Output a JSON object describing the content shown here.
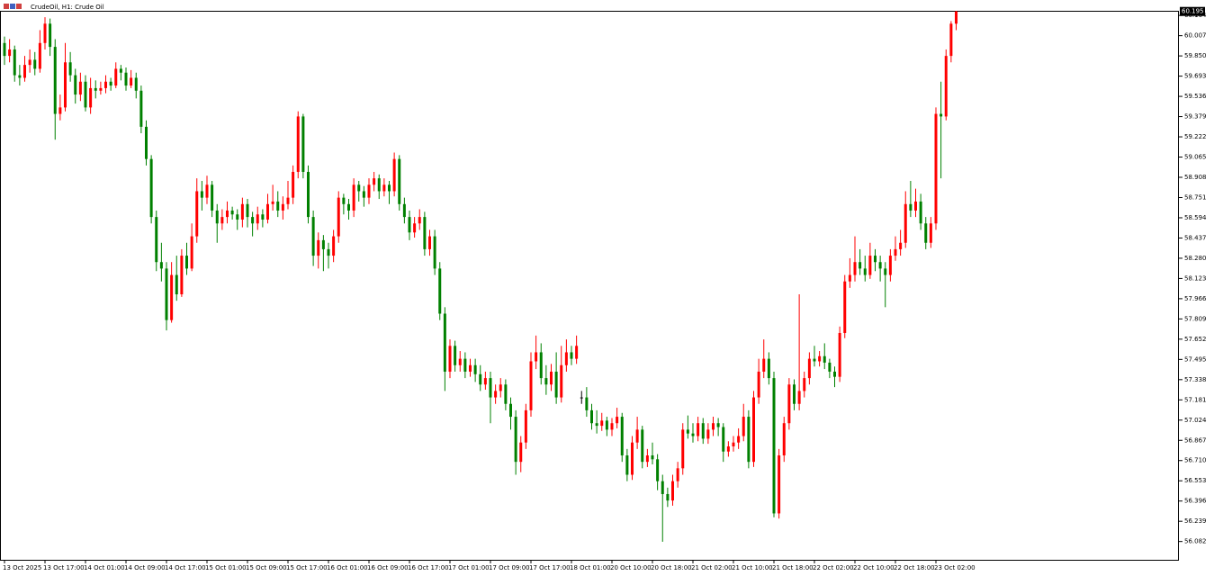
{
  "chart_data": {
    "type": "candlestick",
    "title": "CrudeOil, H1: Crude Oil",
    "up_color": "#ff0000",
    "down_color": "#008000",
    "last_price": 60.195,
    "ylim": [
      55.94,
      60.2
    ],
    "yticks": [
      60.164,
      60.007,
      {
        "value": 59.85,
        "label": "59.850"
      },
      59.693,
      59.536,
      59.379,
      59.222,
      59.065,
      58.908,
      58.751,
      58.594,
      58.437,
      {
        "value": 58.28,
        "label": "58.280"
      },
      58.123,
      57.966,
      57.809,
      57.652,
      57.495,
      57.338,
      57.181,
      57.024,
      56.867,
      {
        "value": 56.71,
        "label": "56.710"
      },
      56.553,
      56.396,
      56.239,
      56.082
    ],
    "categories": [
      "13 Oct 2025",
      null,
      null,
      null,
      null,
      null,
      null,
      null,
      "13 Oct 17:00",
      null,
      null,
      null,
      null,
      null,
      null,
      null,
      "14 Oct 01:00",
      null,
      null,
      null,
      null,
      null,
      null,
      null,
      "14 Oct 09:00",
      null,
      null,
      null,
      null,
      null,
      null,
      null,
      "14 Oct 17:00",
      null,
      null,
      null,
      null,
      null,
      null,
      null,
      "15 Oct 01:00",
      null,
      null,
      null,
      null,
      null,
      null,
      null,
      "15 Oct 09:00",
      null,
      null,
      null,
      null,
      null,
      null,
      null,
      "15 Oct 17:00",
      null,
      null,
      null,
      null,
      null,
      null,
      null,
      "16 Oct 01:00",
      null,
      null,
      null,
      null,
      null,
      null,
      null,
      "16 Oct 09:00",
      null,
      null,
      null,
      null,
      null,
      null,
      null,
      "16 Oct 17:00",
      null,
      null,
      null,
      null,
      null,
      null,
      null,
      "17 Oct 01:00",
      null,
      null,
      null,
      null,
      null,
      null,
      null,
      "17 Oct 09:00",
      null,
      null,
      null,
      null,
      null,
      null,
      null,
      "17 Oct 17:00",
      null,
      null,
      null,
      null,
      null,
      null,
      null,
      "18 Oct 01:00",
      null,
      null,
      null,
      null,
      null,
      null,
      null,
      "20 Oct 10:00",
      null,
      null,
      null,
      null,
      null,
      null,
      null,
      "20 Oct 18:00",
      null,
      null,
      null,
      null,
      null,
      null,
      null,
      "21 Oct 02:00",
      null,
      null,
      null,
      null,
      null,
      null,
      null,
      "21 Oct 10:00",
      null,
      null,
      null,
      null,
      null,
      null,
      null,
      "21 Oct 18:00",
      null,
      null,
      null,
      null,
      null,
      null,
      null,
      "22 Oct 02:00",
      null,
      null,
      null,
      null,
      null,
      null,
      null,
      "22 Oct 10:00",
      null,
      null,
      null,
      null,
      null,
      null,
      null,
      "22 Oct 18:00",
      null,
      null,
      null,
      null,
      null,
      null,
      null,
      "23 Oct 02:00",
      null,
      null,
      null,
      null
    ],
    "candles": [
      [
        59.95,
        60.0,
        59.78,
        59.85
      ],
      [
        59.85,
        59.98,
        59.8,
        59.9
      ],
      [
        59.9,
        59.93,
        59.65,
        59.7
      ],
      [
        59.7,
        59.78,
        59.62,
        59.68
      ],
      [
        59.68,
        59.85,
        59.65,
        59.78
      ],
      [
        59.78,
        59.9,
        59.72,
        59.82
      ],
      [
        59.82,
        59.88,
        59.7,
        59.75
      ],
      [
        59.75,
        60.05,
        59.72,
        59.95
      ],
      [
        59.95,
        60.15,
        59.9,
        60.1
      ],
      [
        60.1,
        60.14,
        59.85,
        59.92
      ],
      [
        59.92,
        59.98,
        59.2,
        59.4
      ],
      [
        59.4,
        59.55,
        59.35,
        59.45
      ],
      [
        59.45,
        59.95,
        59.42,
        59.8
      ],
      [
        59.8,
        59.88,
        59.65,
        59.7
      ],
      [
        59.7,
        59.75,
        59.48,
        59.55
      ],
      [
        59.55,
        59.72,
        59.5,
        59.65
      ],
      [
        59.65,
        59.7,
        59.42,
        59.45
      ],
      [
        59.45,
        59.68,
        59.4,
        59.6
      ],
      [
        59.6,
        59.66,
        59.52,
        59.58
      ],
      [
        59.58,
        59.65,
        59.55,
        59.6
      ],
      [
        59.6,
        59.7,
        59.56,
        59.65
      ],
      [
        59.65,
        59.68,
        59.58,
        59.62
      ],
      [
        59.62,
        59.8,
        59.6,
        59.75
      ],
      [
        59.75,
        59.78,
        59.66,
        59.72
      ],
      [
        59.72,
        59.76,
        59.58,
        59.62
      ],
      [
        59.62,
        59.74,
        59.6,
        59.68
      ],
      [
        59.68,
        59.72,
        59.52,
        59.58
      ],
      [
        59.58,
        59.62,
        59.25,
        59.3
      ],
      [
        59.3,
        59.35,
        59.0,
        59.05
      ],
      [
        59.05,
        59.08,
        58.55,
        58.6
      ],
      [
        58.6,
        58.65,
        58.18,
        58.25
      ],
      [
        58.25,
        58.4,
        58.1,
        58.2
      ],
      [
        58.2,
        58.25,
        57.72,
        57.8
      ],
      [
        57.8,
        58.25,
        57.78,
        58.15
      ],
      [
        58.15,
        58.3,
        57.95,
        58.0
      ],
      [
        58.0,
        58.35,
        57.98,
        58.3
      ],
      [
        58.3,
        58.4,
        58.15,
        58.2
      ],
      [
        58.2,
        58.55,
        58.18,
        58.45
      ],
      [
        58.45,
        58.9,
        58.4,
        58.8
      ],
      [
        58.8,
        58.88,
        58.65,
        58.75
      ],
      [
        58.75,
        58.92,
        58.7,
        58.85
      ],
      [
        58.85,
        58.88,
        58.6,
        58.65
      ],
      [
        58.65,
        58.7,
        58.4,
        58.55
      ],
      [
        58.55,
        58.66,
        58.5,
        58.6
      ],
      [
        58.6,
        58.72,
        58.55,
        58.65
      ],
      [
        58.65,
        58.68,
        58.58,
        58.62
      ],
      [
        58.62,
        58.66,
        58.5,
        58.58
      ],
      [
        58.58,
        58.75,
        58.52,
        58.7
      ],
      [
        58.7,
        58.74,
        58.52,
        58.6
      ],
      [
        58.6,
        58.64,
        58.45,
        58.55
      ],
      [
        58.55,
        58.68,
        58.5,
        58.62
      ],
      [
        58.62,
        58.66,
        58.52,
        58.58
      ],
      [
        58.58,
        58.78,
        58.55,
        58.7
      ],
      [
        58.7,
        58.85,
        58.65,
        58.72
      ],
      [
        58.72,
        58.8,
        58.6,
        58.65
      ],
      [
        58.65,
        58.76,
        58.58,
        58.7
      ],
      [
        58.7,
        58.88,
        58.66,
        58.75
      ],
      [
        58.75,
        59.0,
        58.7,
        58.95
      ],
      [
        58.95,
        59.42,
        58.9,
        59.38
      ],
      [
        59.38,
        59.4,
        58.9,
        58.95
      ],
      [
        58.95,
        59.0,
        58.55,
        58.6
      ],
      [
        58.6,
        58.65,
        58.22,
        58.3
      ],
      [
        58.3,
        58.48,
        58.2,
        58.42
      ],
      [
        58.42,
        58.46,
        58.18,
        58.35
      ],
      [
        58.35,
        58.4,
        58.2,
        58.3
      ],
      [
        58.3,
        58.5,
        58.25,
        58.45
      ],
      [
        58.45,
        58.8,
        58.4,
        58.75
      ],
      [
        58.75,
        58.78,
        58.62,
        58.7
      ],
      [
        58.7,
        58.74,
        58.58,
        58.65
      ],
      [
        58.65,
        58.9,
        58.6,
        58.85
      ],
      [
        58.85,
        58.88,
        58.72,
        58.8
      ],
      [
        58.8,
        58.84,
        58.68,
        58.75
      ],
      [
        58.75,
        58.9,
        58.7,
        58.85
      ],
      [
        58.85,
        58.95,
        58.8,
        58.9
      ],
      [
        58.9,
        58.93,
        58.74,
        58.8
      ],
      [
        58.8,
        58.9,
        58.76,
        58.85
      ],
      [
        58.85,
        58.88,
        58.7,
        58.8
      ],
      [
        58.8,
        59.1,
        58.76,
        59.05
      ],
      [
        59.05,
        59.08,
        58.65,
        58.7
      ],
      [
        58.7,
        58.75,
        58.55,
        58.6
      ],
      [
        58.6,
        58.65,
        58.42,
        58.48
      ],
      [
        58.48,
        58.6,
        58.44,
        58.55
      ],
      [
        58.55,
        58.66,
        58.5,
        58.6
      ],
      [
        58.6,
        58.64,
        58.3,
        58.35
      ],
      [
        58.35,
        58.5,
        58.3,
        58.45
      ],
      [
        58.45,
        58.5,
        58.15,
        58.2
      ],
      [
        58.2,
        58.25,
        57.8,
        57.85
      ],
      [
        57.85,
        57.9,
        57.25,
        57.4
      ],
      [
        57.4,
        57.65,
        57.35,
        57.6
      ],
      [
        57.6,
        57.64,
        57.4,
        57.45
      ],
      [
        57.45,
        57.56,
        57.4,
        57.5
      ],
      [
        57.5,
        57.55,
        57.35,
        57.4
      ],
      [
        57.4,
        57.5,
        57.36,
        57.45
      ],
      [
        57.45,
        57.5,
        57.32,
        57.38
      ],
      [
        57.38,
        57.45,
        57.25,
        57.3
      ],
      [
        57.3,
        57.4,
        57.26,
        57.35
      ],
      [
        57.35,
        57.4,
        57.0,
        57.2
      ],
      [
        57.2,
        57.3,
        57.15,
        57.25
      ],
      [
        57.25,
        57.35,
        57.2,
        57.3
      ],
      [
        57.3,
        57.34,
        57.1,
        57.15
      ],
      [
        57.15,
        57.2,
        56.95,
        57.05
      ],
      [
        57.05,
        57.1,
        56.6,
        56.7
      ],
      [
        56.7,
        56.9,
        56.62,
        56.85
      ],
      [
        56.85,
        57.15,
        56.8,
        57.1
      ],
      [
        57.1,
        57.55,
        57.05,
        57.48
      ],
      [
        57.48,
        57.68,
        57.42,
        57.55
      ],
      [
        57.55,
        57.62,
        57.3,
        57.35
      ],
      [
        57.35,
        57.45,
        57.22,
        57.3
      ],
      [
        57.3,
        57.46,
        57.25,
        57.4
      ],
      [
        57.4,
        57.55,
        57.15,
        57.2
      ],
      [
        57.2,
        57.6,
        57.16,
        57.45
      ],
      [
        57.45,
        57.65,
        57.4,
        57.55
      ],
      [
        57.55,
        57.6,
        57.45,
        57.5
      ],
      [
        57.5,
        57.68,
        57.46,
        57.6
      ],
      [
        57.2,
        57.25,
        57.15,
        57.2
      ],
      [
        57.2,
        57.28,
        57.05,
        57.1
      ],
      [
        57.1,
        57.15,
        56.95,
        57.0
      ],
      [
        57.0,
        57.1,
        56.92,
        56.98
      ],
      [
        56.98,
        57.08,
        56.94,
        57.02
      ],
      [
        57.02,
        57.05,
        56.9,
        56.95
      ],
      [
        56.95,
        57.04,
        56.9,
        57.0
      ],
      [
        57.0,
        57.12,
        56.96,
        57.05
      ],
      [
        57.05,
        57.08,
        56.7,
        56.75
      ],
      [
        56.75,
        56.8,
        56.55,
        56.6
      ],
      [
        56.6,
        56.9,
        56.56,
        56.85
      ],
      [
        56.85,
        57.05,
        56.8,
        56.95
      ],
      [
        56.95,
        56.98,
        56.65,
        56.7
      ],
      [
        56.7,
        56.8,
        56.66,
        56.75
      ],
      [
        56.75,
        56.85,
        56.68,
        56.72
      ],
      [
        56.72,
        56.76,
        56.48,
        56.55
      ],
      [
        56.55,
        56.6,
        56.08,
        56.45
      ],
      [
        56.45,
        56.5,
        56.35,
        56.4
      ],
      [
        56.4,
        56.6,
        56.36,
        56.55
      ],
      [
        56.55,
        56.7,
        56.5,
        56.65
      ],
      [
        56.65,
        57.0,
        56.6,
        56.95
      ],
      [
        56.95,
        57.06,
        56.88,
        56.92
      ],
      [
        56.92,
        57.0,
        56.85,
        56.9
      ],
      [
        56.9,
        57.05,
        56.86,
        57.0
      ],
      [
        57.0,
        57.04,
        56.84,
        56.88
      ],
      [
        56.88,
        57.0,
        56.84,
        56.95
      ],
      [
        56.95,
        57.05,
        56.9,
        57.0
      ],
      [
        57.0,
        57.04,
        56.9,
        56.97
      ],
      [
        56.97,
        57.0,
        56.7,
        56.78
      ],
      [
        56.78,
        56.86,
        56.74,
        56.82
      ],
      [
        56.82,
        56.9,
        56.78,
        56.85
      ],
      [
        56.85,
        56.96,
        56.8,
        56.9
      ],
      [
        56.9,
        57.15,
        56.86,
        57.05
      ],
      [
        57.05,
        57.1,
        56.65,
        56.7
      ],
      [
        56.7,
        57.25,
        56.66,
        57.2
      ],
      [
        57.2,
        57.5,
        57.15,
        57.4
      ],
      [
        57.4,
        57.65,
        57.35,
        57.5
      ],
      [
        57.5,
        57.55,
        57.3,
        57.35
      ],
      [
        57.35,
        57.4,
        56.27,
        56.3
      ],
      [
        56.3,
        56.8,
        56.26,
        56.75
      ],
      [
        56.75,
        57.05,
        56.7,
        57.0
      ],
      [
        57.0,
        57.35,
        56.95,
        57.3
      ],
      [
        57.3,
        57.34,
        57.1,
        57.15
      ],
      [
        57.15,
        58.0,
        57.1,
        57.25
      ],
      [
        57.25,
        57.4,
        57.2,
        57.35
      ],
      [
        57.35,
        57.55,
        57.3,
        57.5
      ],
      [
        57.5,
        57.6,
        57.44,
        57.48
      ],
      [
        57.48,
        57.56,
        57.44,
        57.52
      ],
      [
        57.52,
        57.62,
        57.42,
        57.47
      ],
      [
        57.47,
        57.5,
        57.35,
        57.4
      ],
      [
        57.4,
        57.44,
        57.28,
        57.36
      ],
      [
        57.36,
        57.75,
        57.32,
        57.7
      ],
      [
        57.7,
        58.15,
        57.66,
        58.1
      ],
      [
        58.1,
        58.28,
        58.05,
        58.15
      ],
      [
        58.15,
        58.45,
        58.1,
        58.25
      ],
      [
        58.25,
        58.35,
        58.15,
        58.2
      ],
      [
        58.2,
        58.3,
        58.1,
        58.15
      ],
      [
        58.15,
        58.4,
        58.12,
        58.3
      ],
      [
        58.3,
        58.35,
        58.18,
        58.25
      ],
      [
        58.25,
        58.3,
        58.1,
        58.2
      ],
      [
        58.2,
        58.25,
        57.9,
        58.15
      ],
      [
        58.15,
        58.35,
        58.1,
        58.3
      ],
      [
        58.3,
        58.45,
        58.26,
        58.35
      ],
      [
        58.35,
        58.5,
        58.3,
        58.4
      ],
      [
        58.4,
        58.8,
        58.36,
        58.7
      ],
      [
        58.7,
        58.88,
        58.6,
        58.65
      ],
      [
        58.65,
        58.82,
        58.6,
        58.72
      ],
      [
        58.72,
        58.78,
        58.5,
        58.55
      ],
      [
        58.55,
        58.6,
        58.35,
        58.4
      ],
      [
        58.4,
        58.6,
        58.36,
        58.55
      ],
      [
        58.55,
        59.45,
        58.5,
        59.4
      ],
      [
        59.4,
        59.65,
        58.9,
        59.38
      ],
      [
        59.38,
        59.9,
        59.35,
        59.85
      ],
      [
        59.85,
        60.12,
        59.8,
        60.1
      ],
      [
        60.1,
        60.2,
        60.05,
        60.195
      ]
    ]
  }
}
